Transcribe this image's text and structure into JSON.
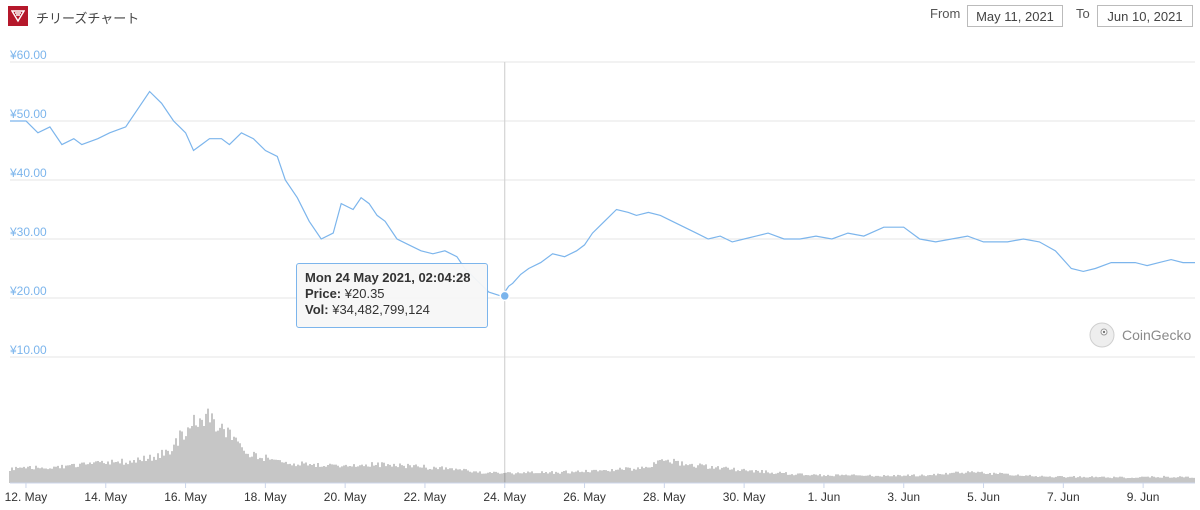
{
  "header": {
    "title": "チリーズチャート",
    "from_label": "From",
    "from_value": "May 11, 2021",
    "to_label": "To",
    "to_value": "Jun 10, 2021"
  },
  "tooltip": {
    "date": "Mon 24 May 2021, 02:04:28",
    "price_label": "Price:",
    "price_value": "¥20.35",
    "vol_label": "Vol:",
    "vol_value": "¥34,482,799,124"
  },
  "watermark": "CoinGecko",
  "colors": {
    "line": "#7cb5ec",
    "grid": "#e6e6e6",
    "volume": "#8c8c8c",
    "logo": "#b5182b"
  },
  "chart_data": {
    "type": "line",
    "title": "チリーズチャート",
    "ylim": [
      10,
      60
    ],
    "y_ticks": [
      "¥10.00",
      "¥20.00",
      "¥30.00",
      "¥40.00",
      "¥50.00",
      "¥60.00"
    ],
    "x_ticks": [
      "12. May",
      "14. May",
      "16. May",
      "18. May",
      "20. May",
      "22. May",
      "24. May",
      "26. May",
      "28. May",
      "30. May",
      "1. Jun",
      "3. Jun",
      "5. Jun",
      "7. Jun",
      "9. Jun"
    ],
    "x_tick_day": [
      1,
      3,
      5,
      7,
      9,
      11,
      13,
      15,
      17,
      19,
      21,
      23,
      25,
      27,
      29
    ],
    "xlim_day": [
      0.6,
      30.3
    ],
    "series": [
      {
        "x_day": [
          0.6,
          1.0,
          1.3,
          1.6,
          1.9,
          2.2,
          2.4,
          2.8,
          3.1,
          3.5,
          3.8,
          4.1,
          4.4,
          4.7,
          5.0,
          5.2,
          5.4,
          5.6,
          5.9,
          6.1,
          6.4,
          6.7,
          7.0,
          7.3,
          7.5,
          7.8,
          8.1,
          8.4,
          8.7,
          8.9,
          9.2,
          9.4,
          9.6,
          9.8,
          10.0,
          10.3,
          10.6,
          10.9,
          11.2,
          11.5,
          11.8,
          12.0,
          12.3,
          12.6,
          12.9,
          13.0,
          13.1,
          13.2,
          13.4,
          13.6,
          13.9,
          14.2,
          14.5,
          14.8,
          15.0,
          15.2,
          15.5,
          15.8,
          16.1,
          16.3,
          16.6,
          16.9,
          17.2,
          17.5,
          17.8,
          18.1,
          18.4,
          18.7,
          19.0,
          19.3,
          19.6,
          20.0,
          20.4,
          20.8,
          21.2,
          21.6,
          22.0,
          22.5,
          23.0,
          23.4,
          23.8,
          24.2,
          24.6,
          25.0,
          25.3,
          25.6,
          26.0,
          26.4,
          26.8,
          27.2,
          27.5,
          27.8,
          28.2,
          28.5,
          28.8,
          29.1,
          29.4,
          29.7,
          30.0,
          30.3
        ],
        "values": [
          50,
          50,
          48,
          49,
          46,
          47,
          46,
          47,
          48,
          49,
          52,
          55,
          53,
          50,
          48,
          45,
          46,
          47,
          47,
          46,
          48,
          47,
          45,
          44,
          40,
          37,
          33,
          30,
          31,
          36,
          35,
          37,
          36,
          34,
          33,
          30,
          29,
          28,
          27.5,
          28,
          27,
          25,
          23,
          21,
          20.35,
          21,
          22,
          22.5,
          24,
          25,
          26,
          27.5,
          27,
          28,
          29,
          31,
          33,
          35,
          34.5,
          34,
          34.5,
          34,
          33,
          32,
          31,
          30,
          30.5,
          29.5,
          30,
          30.5,
          31,
          30,
          30,
          30.5,
          30,
          31,
          30.5,
          32,
          32,
          30,
          29.5,
          30,
          30.5,
          29.5,
          29.5,
          29.5,
          30,
          29.5,
          28,
          25,
          24.5,
          25,
          26,
          26,
          26,
          25.5,
          26,
          26.5,
          26,
          26
        ]
      }
    ],
    "volume": {
      "x_day": [
        0.6,
        1.6,
        2.6,
        3.6,
        4.2,
        4.6,
        5.0,
        5.3,
        5.6,
        6.0,
        6.6,
        7.6,
        8.6,
        9.6,
        10.6,
        11.6,
        12.6,
        13.0,
        13.6,
        14.6,
        15.6,
        16.6,
        17.0,
        17.6,
        18.6,
        19.6,
        20.6,
        21.6,
        22.6,
        23.6,
        24.6,
        25.6,
        26.6,
        27.6,
        28.6,
        29.6,
        30.3
      ],
      "values": [
        0.18,
        0.2,
        0.24,
        0.28,
        0.33,
        0.42,
        0.68,
        0.8,
        0.84,
        0.68,
        0.36,
        0.26,
        0.22,
        0.24,
        0.22,
        0.18,
        0.13,
        0.12,
        0.13,
        0.14,
        0.16,
        0.2,
        0.3,
        0.24,
        0.18,
        0.14,
        0.1,
        0.1,
        0.09,
        0.1,
        0.14,
        0.11,
        0.08,
        0.08,
        0.07,
        0.08,
        0.07
      ]
    }
  }
}
